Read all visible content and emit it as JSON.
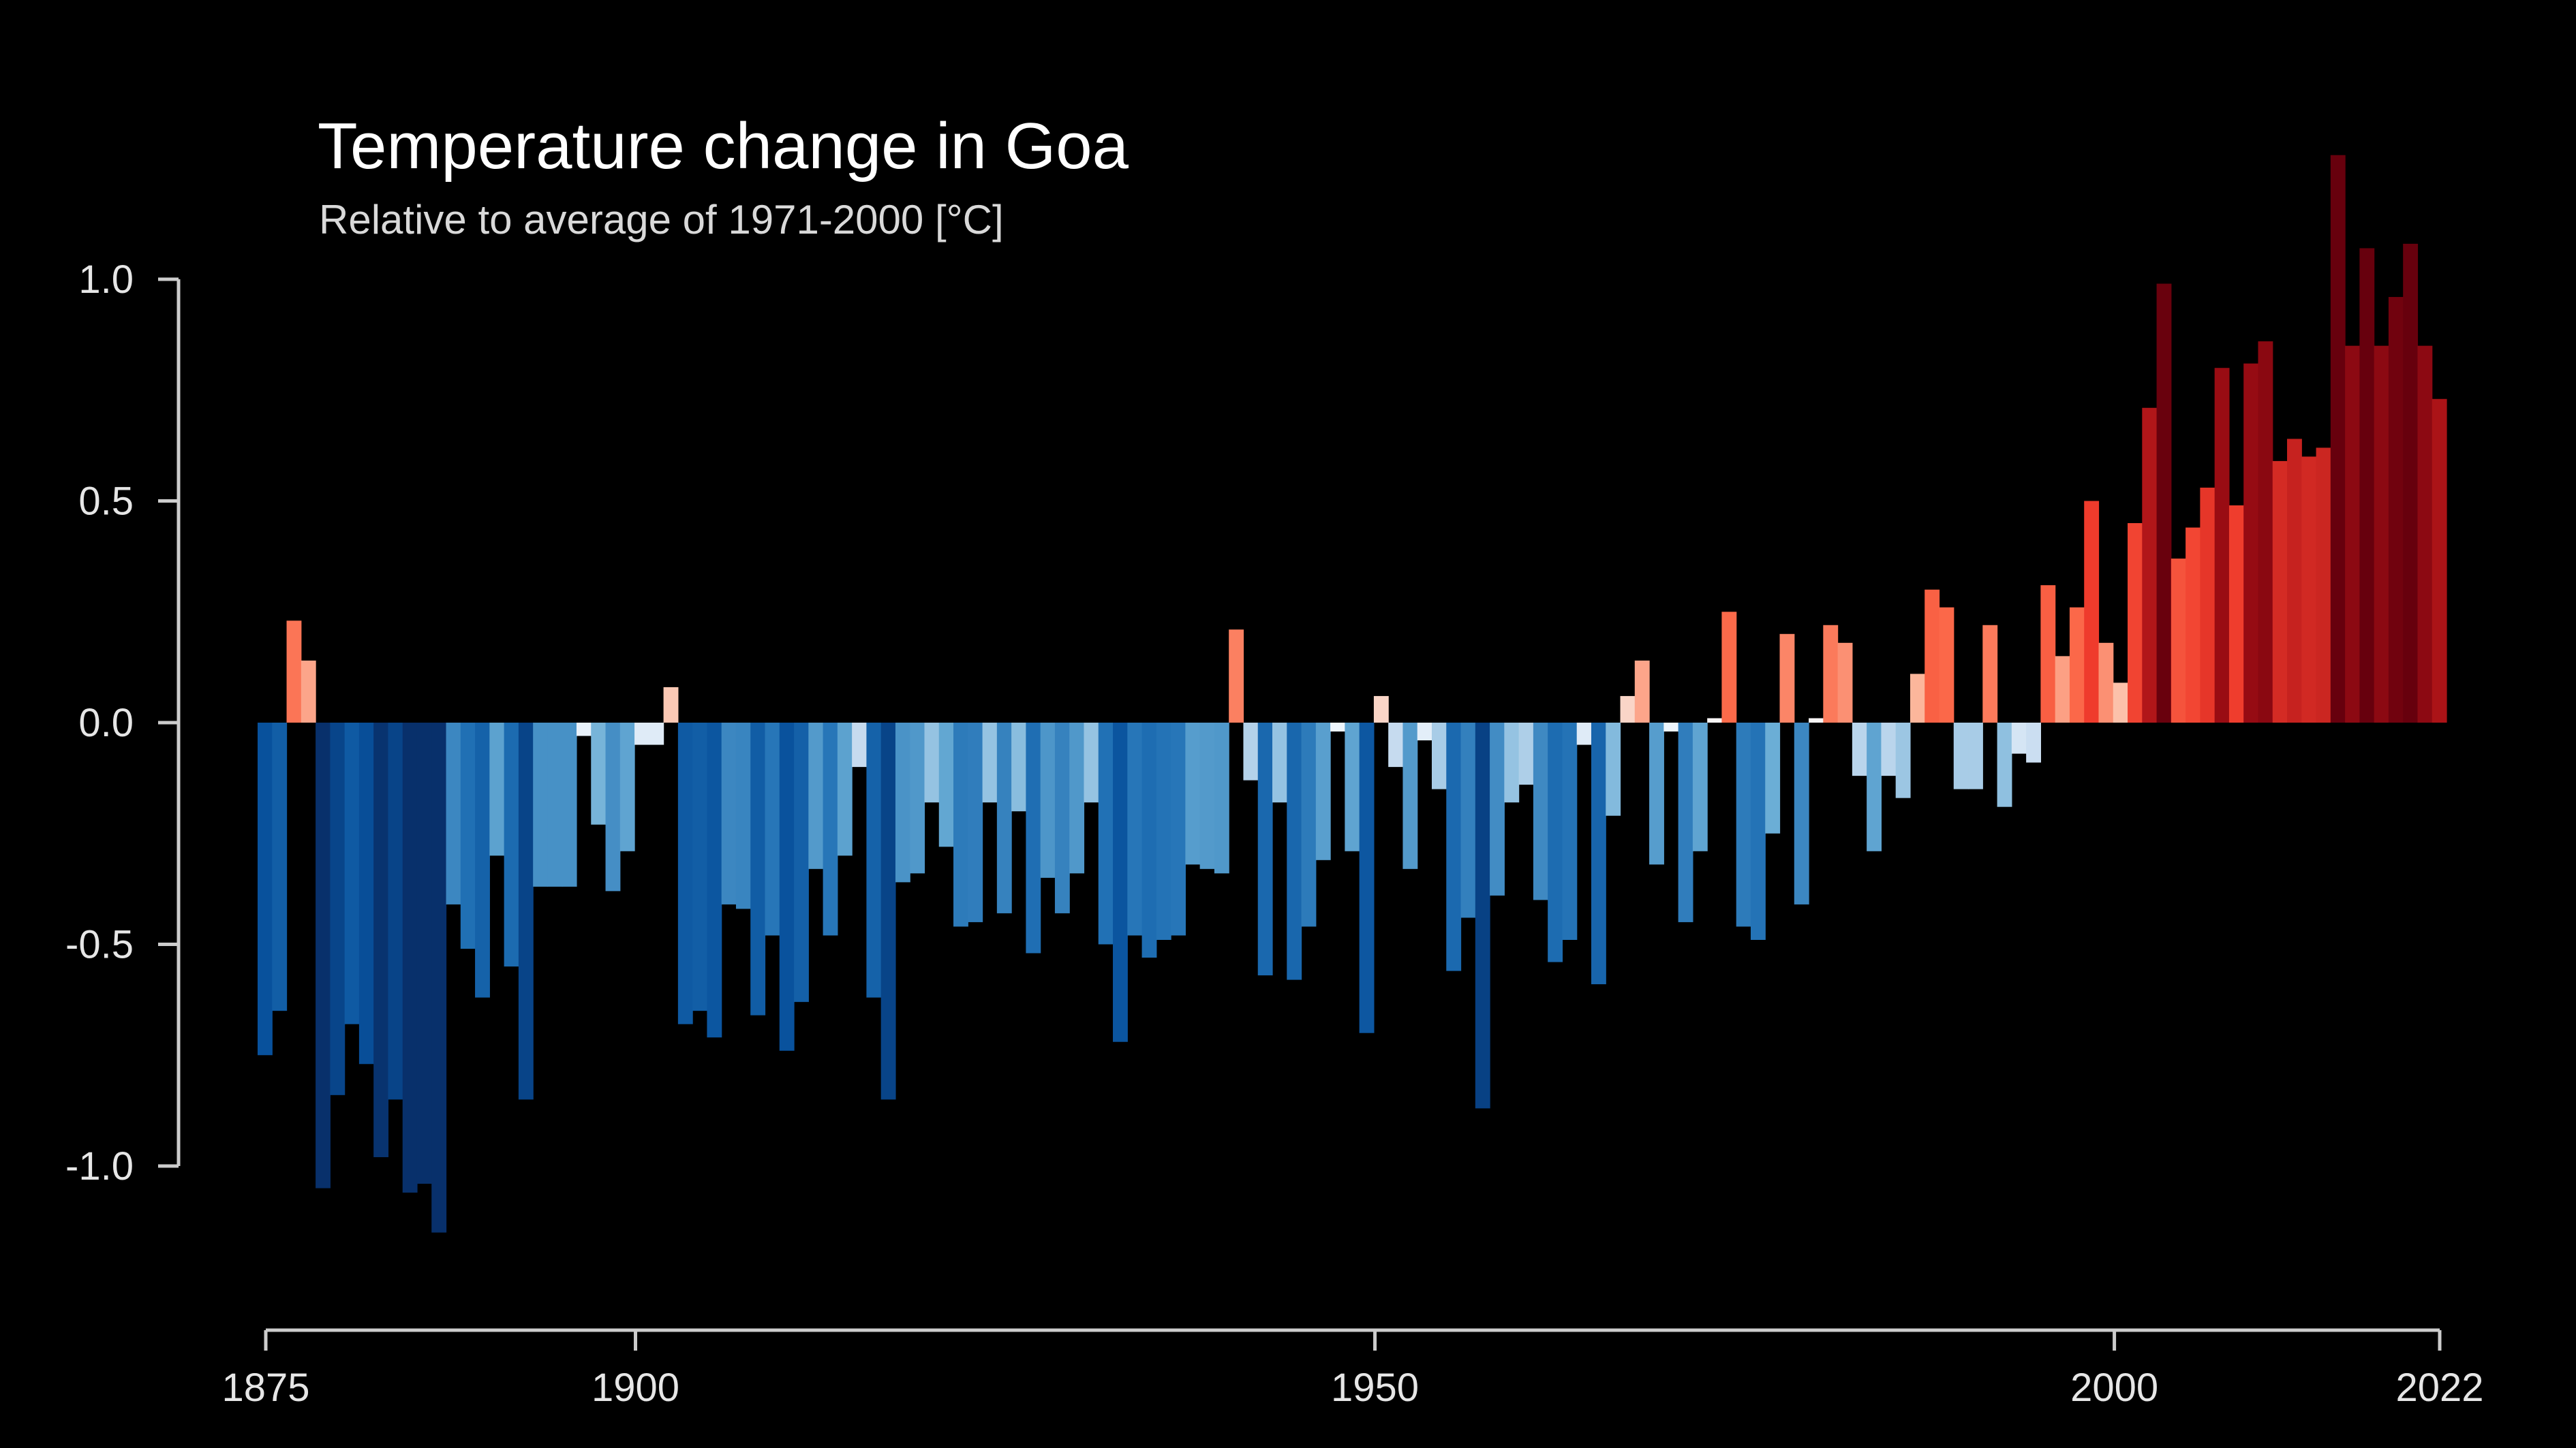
{
  "chart_data": {
    "type": "bar",
    "title": "Temperature change in Goa",
    "subtitle": "Relative to average of 1971-2000  [°C]",
    "x_start": 1875,
    "x_end": 2022,
    "x_ticks": [
      1875,
      1900,
      1950,
      2000,
      2022
    ],
    "y_ticks": [
      1.0,
      0.5,
      0.0,
      -0.5,
      -1.0
    ],
    "y_tick_labels": [
      "1.0",
      "0.5",
      "0.0",
      "-0.5",
      "-1.0"
    ],
    "ylim": [
      -1.35,
      1.35
    ],
    "grid": false,
    "legend": "none",
    "colors": {
      "background": "#000000",
      "axis": "#cccccc",
      "tick_label": "#e6e6e6",
      "title": "#ffffff",
      "subtitle": "#d9d9d9"
    },
    "color_scale": {
      "stops": [
        {
          "v": -1.0,
          "c": "#08306b"
        },
        {
          "v": -0.75,
          "c": "#08519c"
        },
        {
          "v": -0.5,
          "c": "#2171b5"
        },
        {
          "v": -0.25,
          "c": "#6baed6"
        },
        {
          "v": -0.1,
          "c": "#c6dbef"
        },
        {
          "v": 0.0,
          "c": "#f7fbff"
        },
        {
          "v": 0.1,
          "c": "#fcbba1"
        },
        {
          "v": 0.25,
          "c": "#fb6a4a"
        },
        {
          "v": 0.5,
          "c": "#ef3b2c"
        },
        {
          "v": 0.75,
          "c": "#a50f15"
        },
        {
          "v": 1.0,
          "c": "#67000d"
        }
      ]
    },
    "values": [
      -0.75,
      -0.65,
      0.23,
      0.14,
      -1.05,
      -0.84,
      -0.68,
      -0.77,
      -0.98,
      -0.85,
      -1.06,
      -1.04,
      -1.15,
      -0.41,
      -0.51,
      -0.62,
      -0.3,
      -0.55,
      -0.85,
      -0.37,
      -0.37,
      -0.37,
      -0.03,
      -0.23,
      -0.38,
      -0.29,
      -0.05,
      -0.05,
      0.08,
      -0.68,
      -0.65,
      -0.71,
      -0.41,
      -0.42,
      -0.66,
      -0.48,
      -0.74,
      -0.63,
      -0.33,
      -0.48,
      -0.3,
      -0.1,
      -0.62,
      -0.85,
      -0.36,
      -0.34,
      -0.18,
      -0.28,
      -0.46,
      -0.45,
      -0.18,
      -0.43,
      -0.2,
      -0.52,
      -0.35,
      -0.43,
      -0.34,
      -0.18,
      -0.5,
      -0.72,
      -0.48,
      -0.53,
      -0.49,
      -0.48,
      -0.32,
      -0.33,
      -0.34,
      0.21,
      -0.13,
      -0.57,
      -0.18,
      -0.58,
      -0.46,
      -0.31,
      -0.02,
      -0.29,
      -0.7,
      0.06,
      -0.1,
      -0.33,
      -0.04,
      -0.15,
      -0.56,
      -0.44,
      -0.87,
      -0.39,
      -0.18,
      -0.14,
      -0.4,
      -0.54,
      -0.49,
      -0.05,
      -0.59,
      -0.21,
      0.06,
      0.14,
      -0.32,
      -0.02,
      -0.45,
      -0.29,
      0.01,
      0.25,
      -0.46,
      -0.49,
      -0.25,
      0.2,
      -0.41,
      0.01,
      0.22,
      0.18,
      -0.12,
      -0.29,
      -0.12,
      -0.17,
      0.11,
      0.3,
      0.26,
      -0.15,
      -0.15,
      0.22,
      -0.19,
      -0.07,
      -0.09,
      0.31,
      0.15,
      0.26,
      0.5,
      0.18,
      0.09,
      0.45,
      0.71,
      0.99,
      0.37,
      0.44,
      0.53,
      0.8,
      0.49,
      0.81,
      0.86,
      0.59,
      0.64,
      0.6,
      0.62,
      1.28,
      0.85,
      1.07,
      0.85,
      0.96,
      1.08,
      0.85,
      0.73
    ]
  }
}
